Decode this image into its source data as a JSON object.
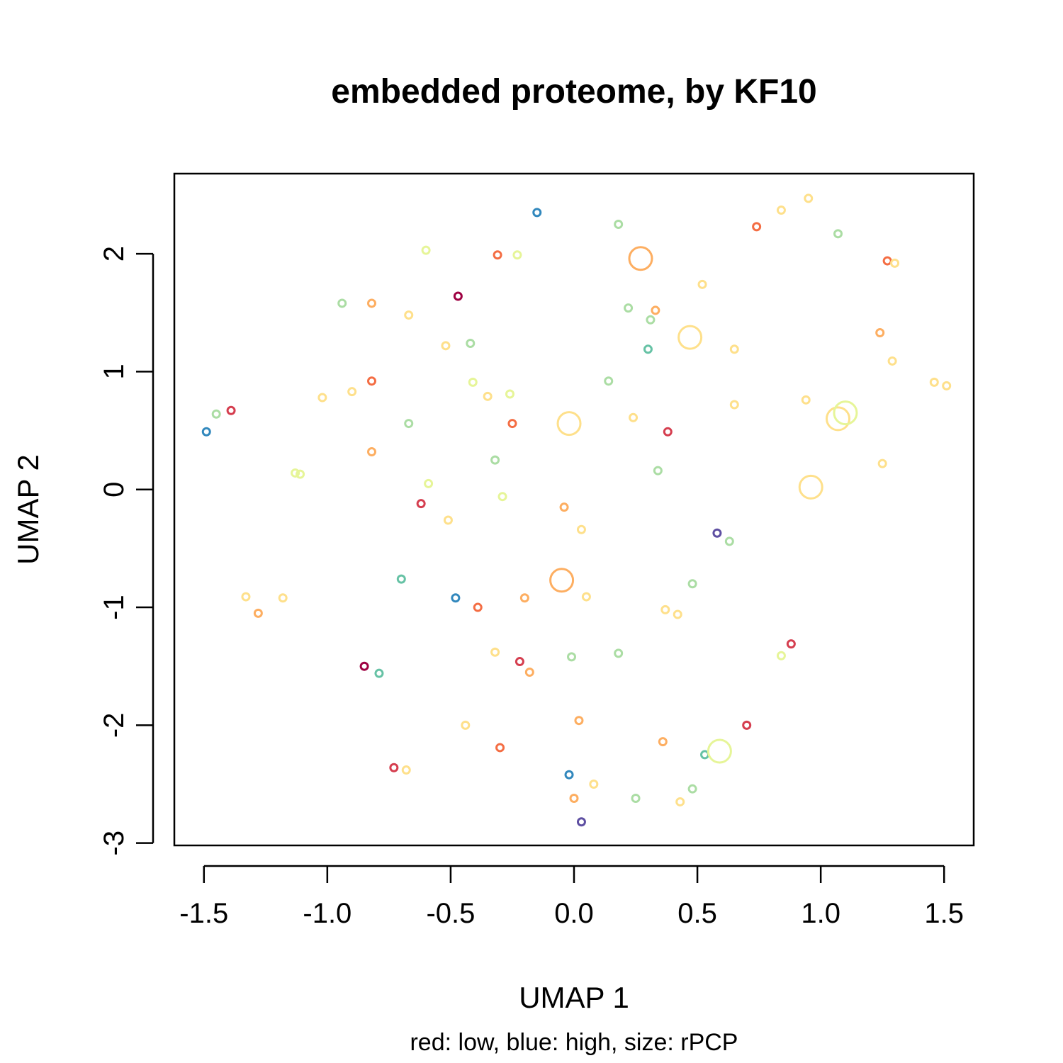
{
  "chart_data": {
    "type": "scatter",
    "title": "embedded proteome, by KF10",
    "xlabel": "UMAP 1",
    "ylabel": "UMAP 2",
    "subtitle": "red: low, blue: high, size: rPCP",
    "xlim": [
      -1.62,
      1.62
    ],
    "ylim": [
      -3.02,
      2.68
    ],
    "xticks": [
      -1.5,
      -1.0,
      -0.5,
      0.0,
      0.5,
      1.0,
      1.5
    ],
    "xtick_labels": [
      "-1.5",
      "-1.0",
      "-0.5",
      "0.0",
      "0.5",
      "1.0",
      "1.5"
    ],
    "yticks": [
      -3,
      -2,
      -1,
      0,
      1,
      2
    ],
    "ytick_labels": [
      "-3",
      "-2",
      "-1",
      "0",
      "1",
      "2"
    ],
    "grid": false,
    "legend": "none",
    "color_scale": "Spectral (red = low, blue = high)",
    "colors": {
      "dark_red": "#9e0142",
      "red": "#d53e4f",
      "orange_red": "#f46d43",
      "orange": "#fdae61",
      "yellow": "#fee08b",
      "light_yellow": "#e6f598",
      "light_green": "#abdda4",
      "teal": "#66c2a5",
      "blue": "#3288bd",
      "purple": "#5e4fa2"
    },
    "points": [
      {
        "x": -0.15,
        "y": 2.35,
        "color": "#3288bd",
        "size": 1
      },
      {
        "x": 0.18,
        "y": 2.25,
        "color": "#abdda4",
        "size": 1
      },
      {
        "x": 0.95,
        "y": 2.47,
        "color": "#fee08b",
        "size": 1
      },
      {
        "x": 0.84,
        "y": 2.37,
        "color": "#fee08b",
        "size": 1
      },
      {
        "x": 0.74,
        "y": 2.23,
        "color": "#f46d43",
        "size": 1
      },
      {
        "x": 1.07,
        "y": 2.17,
        "color": "#abdda4",
        "size": 1
      },
      {
        "x": 1.27,
        "y": 1.94,
        "color": "#f46d43",
        "size": 1
      },
      {
        "x": 1.3,
        "y": 1.92,
        "color": "#fee08b",
        "size": 1
      },
      {
        "x": -0.6,
        "y": 2.03,
        "color": "#e6f598",
        "size": 1
      },
      {
        "x": -0.31,
        "y": 1.99,
        "color": "#f46d43",
        "size": 1
      },
      {
        "x": -0.23,
        "y": 1.99,
        "color": "#e6f598",
        "size": 1
      },
      {
        "x": 0.27,
        "y": 1.96,
        "color": "#fdae61",
        "size": 3
      },
      {
        "x": 0.52,
        "y": 1.74,
        "color": "#fee08b",
        "size": 1
      },
      {
        "x": -0.47,
        "y": 1.64,
        "color": "#9e0142",
        "size": 1
      },
      {
        "x": -0.94,
        "y": 1.58,
        "color": "#abdda4",
        "size": 1
      },
      {
        "x": -0.82,
        "y": 1.58,
        "color": "#fdae61",
        "size": 1
      },
      {
        "x": -0.67,
        "y": 1.48,
        "color": "#fee08b",
        "size": 1
      },
      {
        "x": 0.22,
        "y": 1.54,
        "color": "#abdda4",
        "size": 1
      },
      {
        "x": 0.33,
        "y": 1.52,
        "color": "#fdae61",
        "size": 1
      },
      {
        "x": 0.31,
        "y": 1.44,
        "color": "#abdda4",
        "size": 1
      },
      {
        "x": 0.47,
        "y": 1.29,
        "color": "#fee08b",
        "size": 3
      },
      {
        "x": -0.52,
        "y": 1.22,
        "color": "#fee08b",
        "size": 1
      },
      {
        "x": -0.42,
        "y": 1.24,
        "color": "#abdda4",
        "size": 1
      },
      {
        "x": 0.3,
        "y": 1.19,
        "color": "#66c2a5",
        "size": 1
      },
      {
        "x": 0.65,
        "y": 1.19,
        "color": "#fee08b",
        "size": 1
      },
      {
        "x": 1.24,
        "y": 1.33,
        "color": "#fdae61",
        "size": 1
      },
      {
        "x": 1.29,
        "y": 1.09,
        "color": "#fee08b",
        "size": 1
      },
      {
        "x": -0.82,
        "y": 0.92,
        "color": "#f46d43",
        "size": 1
      },
      {
        "x": -0.9,
        "y": 0.83,
        "color": "#fee08b",
        "size": 1
      },
      {
        "x": -1.02,
        "y": 0.78,
        "color": "#fee08b",
        "size": 1
      },
      {
        "x": -0.41,
        "y": 0.91,
        "color": "#e6f598",
        "size": 1
      },
      {
        "x": -0.35,
        "y": 0.79,
        "color": "#fee08b",
        "size": 1
      },
      {
        "x": -0.26,
        "y": 0.81,
        "color": "#e6f598",
        "size": 1
      },
      {
        "x": 0.14,
        "y": 0.92,
        "color": "#abdda4",
        "size": 1
      },
      {
        "x": 1.46,
        "y": 0.91,
        "color": "#fee08b",
        "size": 1
      },
      {
        "x": 1.51,
        "y": 0.88,
        "color": "#fee08b",
        "size": 1
      },
      {
        "x": 0.94,
        "y": 0.76,
        "color": "#fee08b",
        "size": 1
      },
      {
        "x": 0.65,
        "y": 0.72,
        "color": "#fee08b",
        "size": 1
      },
      {
        "x": -1.39,
        "y": 0.67,
        "color": "#d53e4f",
        "size": 1
      },
      {
        "x": -1.45,
        "y": 0.64,
        "color": "#abdda4",
        "size": 1
      },
      {
        "x": -1.49,
        "y": 0.49,
        "color": "#3288bd",
        "size": 1
      },
      {
        "x": -0.67,
        "y": 0.56,
        "color": "#abdda4",
        "size": 1
      },
      {
        "x": -0.25,
        "y": 0.56,
        "color": "#f46d43",
        "size": 1
      },
      {
        "x": -0.02,
        "y": 0.56,
        "color": "#fee08b",
        "size": 3
      },
      {
        "x": 0.24,
        "y": 0.61,
        "color": "#fee08b",
        "size": 1
      },
      {
        "x": 0.38,
        "y": 0.49,
        "color": "#d53e4f",
        "size": 1
      },
      {
        "x": 1.07,
        "y": 0.6,
        "color": "#fee08b",
        "size": 3
      },
      {
        "x": 1.1,
        "y": 0.65,
        "color": "#e6f598",
        "size": 3
      },
      {
        "x": -0.82,
        "y": 0.32,
        "color": "#fdae61",
        "size": 1
      },
      {
        "x": -0.32,
        "y": 0.25,
        "color": "#abdda4",
        "size": 1
      },
      {
        "x": 0.34,
        "y": 0.16,
        "color": "#abdda4",
        "size": 1
      },
      {
        "x": 1.25,
        "y": 0.22,
        "color": "#fee08b",
        "size": 1
      },
      {
        "x": -1.13,
        "y": 0.14,
        "color": "#e6f598",
        "size": 1
      },
      {
        "x": -1.11,
        "y": 0.13,
        "color": "#e6f598",
        "size": 1
      },
      {
        "x": -0.59,
        "y": 0.05,
        "color": "#e6f598",
        "size": 1
      },
      {
        "x": 0.96,
        "y": 0.02,
        "color": "#fee08b",
        "size": 3
      },
      {
        "x": -0.62,
        "y": -0.12,
        "color": "#d53e4f",
        "size": 1
      },
      {
        "x": -0.29,
        "y": -0.06,
        "color": "#e6f598",
        "size": 1
      },
      {
        "x": -0.04,
        "y": -0.15,
        "color": "#fdae61",
        "size": 1
      },
      {
        "x": -0.51,
        "y": -0.26,
        "color": "#fee08b",
        "size": 1
      },
      {
        "x": 0.03,
        "y": -0.34,
        "color": "#fee08b",
        "size": 1
      },
      {
        "x": 0.58,
        "y": -0.37,
        "color": "#5e4fa2",
        "size": 1
      },
      {
        "x": 0.63,
        "y": -0.44,
        "color": "#abdda4",
        "size": 1
      },
      {
        "x": -0.7,
        "y": -0.76,
        "color": "#66c2a5",
        "size": 1
      },
      {
        "x": -0.05,
        "y": -0.77,
        "color": "#fdae61",
        "size": 3
      },
      {
        "x": 0.48,
        "y": -0.8,
        "color": "#abdda4",
        "size": 1
      },
      {
        "x": -1.33,
        "y": -0.91,
        "color": "#fee08b",
        "size": 1
      },
      {
        "x": -1.18,
        "y": -0.92,
        "color": "#fee08b",
        "size": 1
      },
      {
        "x": -0.48,
        "y": -0.92,
        "color": "#3288bd",
        "size": 1
      },
      {
        "x": -0.2,
        "y": -0.92,
        "color": "#fdae61",
        "size": 1
      },
      {
        "x": 0.05,
        "y": -0.91,
        "color": "#fee08b",
        "size": 1
      },
      {
        "x": -1.28,
        "y": -1.05,
        "color": "#fdae61",
        "size": 1
      },
      {
        "x": -0.39,
        "y": -1.0,
        "color": "#f46d43",
        "size": 1
      },
      {
        "x": 0.37,
        "y": -1.02,
        "color": "#fee08b",
        "size": 1
      },
      {
        "x": 0.42,
        "y": -1.06,
        "color": "#fee08b",
        "size": 1
      },
      {
        "x": -0.32,
        "y": -1.38,
        "color": "#fee08b",
        "size": 1
      },
      {
        "x": -0.01,
        "y": -1.42,
        "color": "#abdda4",
        "size": 1
      },
      {
        "x": 0.18,
        "y": -1.39,
        "color": "#abdda4",
        "size": 1
      },
      {
        "x": -0.22,
        "y": -1.46,
        "color": "#d53e4f",
        "size": 1
      },
      {
        "x": -0.18,
        "y": -1.55,
        "color": "#fdae61",
        "size": 1
      },
      {
        "x": -0.85,
        "y": -1.5,
        "color": "#9e0142",
        "size": 1
      },
      {
        "x": -0.79,
        "y": -1.56,
        "color": "#66c2a5",
        "size": 1
      },
      {
        "x": 0.88,
        "y": -1.31,
        "color": "#d53e4f",
        "size": 1
      },
      {
        "x": 0.84,
        "y": -1.41,
        "color": "#e6f598",
        "size": 1
      },
      {
        "x": -0.44,
        "y": -2.0,
        "color": "#fee08b",
        "size": 1
      },
      {
        "x": 0.02,
        "y": -1.96,
        "color": "#fdae61",
        "size": 1
      },
      {
        "x": 0.7,
        "y": -2.0,
        "color": "#d53e4f",
        "size": 1
      },
      {
        "x": -0.3,
        "y": -2.19,
        "color": "#f46d43",
        "size": 1
      },
      {
        "x": 0.36,
        "y": -2.14,
        "color": "#fdae61",
        "size": 1
      },
      {
        "x": 0.53,
        "y": -2.25,
        "color": "#66c2a5",
        "size": 1
      },
      {
        "x": 0.59,
        "y": -2.22,
        "color": "#e6f598",
        "size": 3
      },
      {
        "x": -0.73,
        "y": -2.36,
        "color": "#d53e4f",
        "size": 1
      },
      {
        "x": -0.68,
        "y": -2.38,
        "color": "#fee08b",
        "size": 1
      },
      {
        "x": -0.02,
        "y": -2.42,
        "color": "#3288bd",
        "size": 1
      },
      {
        "x": 0.08,
        "y": -2.5,
        "color": "#fee08b",
        "size": 1
      },
      {
        "x": 0.48,
        "y": -2.54,
        "color": "#abdda4",
        "size": 1
      },
      {
        "x": 0.0,
        "y": -2.62,
        "color": "#fdae61",
        "size": 1
      },
      {
        "x": 0.25,
        "y": -2.62,
        "color": "#abdda4",
        "size": 1
      },
      {
        "x": 0.43,
        "y": -2.65,
        "color": "#fee08b",
        "size": 1
      },
      {
        "x": 0.03,
        "y": -2.82,
        "color": "#5e4fa2",
        "size": 1
      }
    ]
  }
}
